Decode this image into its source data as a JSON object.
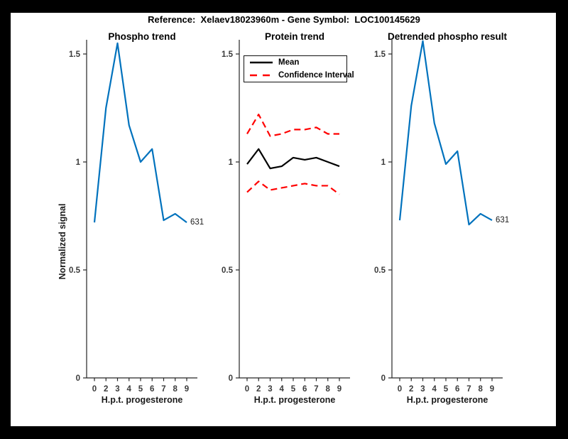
{
  "figure": {
    "title": "Reference:  Xelaev18023960m - Gene Symbol:  LOC100145629",
    "frame_color": "#000000",
    "canvas_color": "#ffffff"
  },
  "colors": {
    "blue": "#0072BD",
    "red": "#FF0000",
    "black": "#000000",
    "axis": "#262626",
    "tick_label": "#3a3a3a"
  },
  "legend": {
    "position": "top-left-of-middle-plot",
    "items": [
      {
        "label": "Mean",
        "style": "solid",
        "color": "#000000"
      },
      {
        "label": "Confidence Interval",
        "style": "dashed",
        "color": "#FF0000"
      }
    ]
  },
  "chart_data": [
    {
      "type": "line",
      "title": "Phospho trend",
      "xlabel": "H.p.t. progesterone",
      "ylabel": "Normalized signal",
      "categories": [
        "0",
        "2",
        "3",
        "4",
        "5",
        "6",
        "7",
        "8",
        "9"
      ],
      "yticks": [
        "0",
        "0.5",
        "1",
        "1.5"
      ],
      "ytick_values": [
        0,
        0.5,
        1,
        1.5
      ],
      "ylim": [
        0,
        1.57
      ],
      "grid": false,
      "annotation": "631",
      "series": [
        {
          "name": "Phospho",
          "color": "#0072BD",
          "style": "solid",
          "values": [
            0.72,
            1.25,
            1.55,
            1.17,
            1.0,
            1.06,
            0.73,
            0.76,
            0.72
          ]
        }
      ]
    },
    {
      "type": "line",
      "title": "Protein trend",
      "xlabel": "H.p.t. progesterone",
      "ylabel": "",
      "categories": [
        "0",
        "2",
        "3",
        "4",
        "5",
        "6",
        "7",
        "8",
        "9"
      ],
      "yticks": [
        "0",
        "0.5",
        "1",
        "1.5"
      ],
      "ytick_values": [
        0,
        0.5,
        1,
        1.5
      ],
      "ylim": [
        0,
        1.57
      ],
      "grid": false,
      "legend_entries": [
        "Mean",
        "Confidence Interval"
      ],
      "series": [
        {
          "name": "Mean",
          "color": "#000000",
          "style": "solid",
          "values": [
            0.99,
            1.06,
            0.97,
            0.98,
            1.02,
            1.01,
            1.02,
            1.0,
            0.98
          ]
        },
        {
          "name": "CI upper",
          "color": "#FF0000",
          "style": "dashed",
          "values": [
            1.13,
            1.22,
            1.12,
            1.13,
            1.15,
            1.15,
            1.16,
            1.13,
            1.13
          ]
        },
        {
          "name": "CI lower",
          "color": "#FF0000",
          "style": "dashed",
          "values": [
            0.86,
            0.91,
            0.87,
            0.88,
            0.89,
            0.9,
            0.89,
            0.89,
            0.85
          ]
        }
      ]
    },
    {
      "type": "line",
      "title": "Detrended phospho result",
      "xlabel": "H.p.t. progesterone",
      "ylabel": "",
      "categories": [
        "0",
        "2",
        "3",
        "4",
        "5",
        "6",
        "7",
        "8",
        "9"
      ],
      "yticks": [
        "0",
        "0.5",
        "1",
        "1.5"
      ],
      "ytick_values": [
        0,
        0.5,
        1,
        1.5
      ],
      "ylim": [
        0,
        1.57
      ],
      "grid": false,
      "annotation": "631",
      "series": [
        {
          "name": "Detrended phospho",
          "color": "#0072BD",
          "style": "solid",
          "values": [
            0.73,
            1.26,
            1.56,
            1.18,
            0.99,
            1.05,
            0.71,
            0.76,
            0.73
          ]
        }
      ]
    }
  ]
}
